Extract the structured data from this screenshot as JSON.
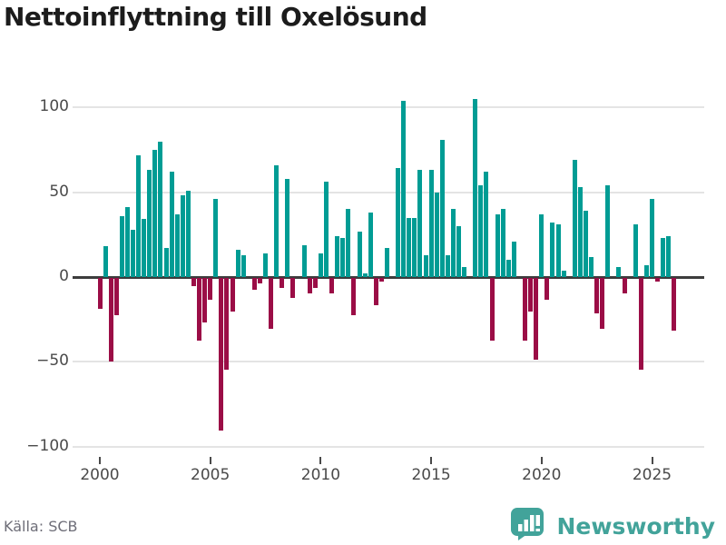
{
  "title": "Nettoinflyttning till Oxelösund",
  "source": "Källa: SCB",
  "branding": {
    "name": "Newsworthy",
    "icon": "newsworthy-speech-bubble-bar-chart-icon"
  },
  "colors": {
    "positive_bar": "#009c94",
    "negative_bar": "#9b0d46",
    "gridline": "#e4e4e4",
    "zero_axis": "#3d3d3d",
    "tick_label": "#4a4a4a",
    "source_text": "#6e6e78",
    "brand_teal": "#42a39a",
    "title_text": "#1c1c1c"
  },
  "chart_data": {
    "type": "bar",
    "title": "Nettoinflyttning till Oxelösund",
    "xlabel": "",
    "ylabel": "",
    "frequency": "quarterly",
    "start_year": 2000,
    "start_quarter": 1,
    "ylim": [
      -110,
      115
    ],
    "grid": "horizontal",
    "legend": "none",
    "y_ticks": [
      {
        "label": "100",
        "value": 100
      },
      {
        "label": "50",
        "value": 50
      },
      {
        "label": "0",
        "value": 0
      },
      {
        "label": "−50",
        "value": -50
      },
      {
        "label": "−100",
        "value": -100
      }
    ],
    "x_ticks": [
      {
        "label": "2000",
        "year": 2000
      },
      {
        "label": "2005",
        "year": 2005
      },
      {
        "label": "2010",
        "year": 2010
      },
      {
        "label": "2015",
        "year": 2015
      },
      {
        "label": "2020",
        "year": 2020
      },
      {
        "label": "2025",
        "year": 2025
      }
    ],
    "values": [
      -18,
      18,
      -49,
      -22,
      36,
      41,
      28,
      72,
      34,
      63,
      75,
      80,
      17,
      62,
      37,
      48,
      51,
      -5,
      -37,
      -26,
      -13,
      46,
      -90,
      -54,
      -20,
      16,
      13,
      0,
      -7,
      -3,
      14,
      -30,
      66,
      -6,
      58,
      -12,
      0,
      19,
      -9,
      -6,
      14,
      56,
      -9,
      24,
      23,
      40,
      -22,
      27,
      2,
      38,
      -16,
      -2,
      17,
      0,
      64,
      104,
      35,
      35,
      63,
      13,
      63,
      50,
      81,
      13,
      40,
      30,
      6,
      0,
      105,
      54,
      62,
      -37,
      37,
      40,
      10,
      21,
      0,
      -37,
      -20,
      -48,
      37,
      -13,
      32,
      31,
      4,
      0,
      69,
      53,
      39,
      12,
      -21,
      -30,
      54,
      0,
      6,
      -9,
      0,
      31,
      -54,
      7,
      46,
      -2,
      23,
      24,
      -31
    ]
  }
}
